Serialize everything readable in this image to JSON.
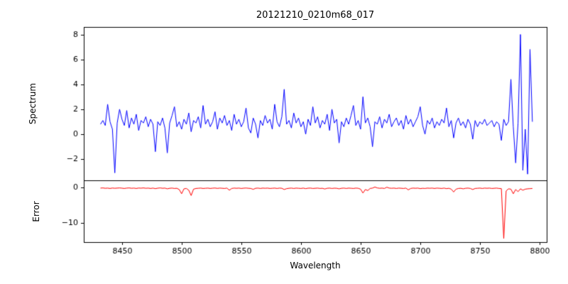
{
  "chart_data": {
    "type": "line",
    "title": "20121210_0210m68_017",
    "xlabel": "Wavelength",
    "grid": false,
    "legend": "none",
    "xlim": [
      8418,
      8806
    ],
    "x_ticks": [
      8450,
      8500,
      8550,
      8600,
      8650,
      8700,
      8750,
      8800
    ],
    "panels": [
      {
        "name": "spectrum",
        "ylabel": "Spectrum",
        "ylim": [
          -3.7,
          8.6
        ],
        "y_ticks": [
          -2,
          0,
          2,
          4,
          6,
          8
        ],
        "color": "#0000ff"
      },
      {
        "name": "error",
        "ylabel": "Error",
        "ylim": [
          -15.5,
          2.0
        ],
        "y_ticks": [
          -10,
          0
        ],
        "color": "#ff0000"
      }
    ],
    "x": [
      8432,
      8434,
      8436,
      8438,
      8440,
      8442,
      8444,
      8446,
      8448,
      8450,
      8452,
      8454,
      8456,
      8458,
      8460,
      8462,
      8464,
      8466,
      8468,
      8470,
      8472,
      8474,
      8476,
      8478,
      8480,
      8482,
      8484,
      8486,
      8488,
      8490,
      8492,
      8494,
      8496,
      8498,
      8500,
      8502,
      8504,
      8506,
      8508,
      8510,
      8512,
      8514,
      8516,
      8518,
      8520,
      8522,
      8524,
      8526,
      8528,
      8530,
      8532,
      8534,
      8536,
      8538,
      8540,
      8542,
      8544,
      8546,
      8548,
      8550,
      8552,
      8554,
      8556,
      8558,
      8560,
      8562,
      8564,
      8566,
      8568,
      8570,
      8572,
      8574,
      8576,
      8578,
      8580,
      8582,
      8584,
      8586,
      8588,
      8590,
      8592,
      8594,
      8596,
      8598,
      8600,
      8602,
      8604,
      8606,
      8608,
      8610,
      8612,
      8614,
      8616,
      8618,
      8620,
      8622,
      8624,
      8626,
      8628,
      8630,
      8632,
      8634,
      8636,
      8638,
      8640,
      8642,
      8644,
      8646,
      8648,
      8650,
      8652,
      8654,
      8656,
      8658,
      8660,
      8662,
      8664,
      8666,
      8668,
      8670,
      8672,
      8674,
      8676,
      8678,
      8680,
      8682,
      8684,
      8686,
      8688,
      8690,
      8692,
      8694,
      8696,
      8698,
      8700,
      8702,
      8704,
      8706,
      8708,
      8710,
      8712,
      8714,
      8716,
      8718,
      8720,
      8722,
      8724,
      8726,
      8728,
      8730,
      8732,
      8734,
      8736,
      8738,
      8740,
      8742,
      8744,
      8746,
      8748,
      8750,
      8752,
      8754,
      8756,
      8758,
      8760,
      8762,
      8764,
      8766,
      8768,
      8770,
      8772,
      8774,
      8776,
      8778,
      8780,
      8782,
      8784,
      8786,
      8788,
      8790,
      8792,
      8794
    ],
    "series": [
      {
        "name": "Spectrum",
        "color": "#0000ff",
        "values": [
          0.8,
          1.1,
          0.7,
          2.4,
          1.0,
          0.4,
          -3.1,
          0.9,
          2.0,
          1.2,
          0.7,
          1.9,
          0.5,
          1.3,
          0.8,
          1.6,
          0.3,
          1.1,
          0.9,
          1.4,
          0.6,
          1.2,
          0.8,
          -1.4,
          1.0,
          0.7,
          1.3,
          0.5,
          -1.5,
          0.9,
          1.5,
          2.2,
          0.6,
          1.0,
          0.4,
          1.2,
          0.8,
          1.7,
          0.2,
          1.1,
          0.9,
          1.4,
          0.5,
          2.3,
          0.8,
          1.2,
          0.6,
          1.0,
          1.8,
          0.4,
          1.3,
          0.9,
          1.5,
          0.7,
          1.1,
          0.3,
          1.6,
          0.8,
          1.2,
          0.6,
          1.0,
          2.1,
          0.5,
          0.1,
          1.3,
          0.8,
          -0.3,
          1.1,
          0.7,
          1.5,
          0.9,
          1.2,
          0.4,
          2.4,
          1.0,
          0.6,
          1.4,
          3.6,
          0.8,
          1.1,
          0.5,
          1.7,
          0.9,
          1.3,
          0.6,
          1.0,
          0.0,
          1.2,
          0.7,
          2.2,
          0.9,
          1.4,
          0.5,
          1.1,
          0.8,
          1.6,
          0.3,
          2.0,
          0.9,
          1.2,
          -0.7,
          1.0,
          0.6,
          1.3,
          0.8,
          1.5,
          2.3,
          0.7,
          1.1,
          0.4,
          3.0,
          0.9,
          1.3,
          0.6,
          -1.0,
          1.0,
          0.8,
          1.4,
          0.5,
          1.2,
          0.9,
          1.6,
          0.6,
          1.0,
          1.3,
          0.7,
          1.1,
          0.4,
          1.5,
          0.8,
          1.2,
          0.6,
          1.0,
          1.4,
          2.2,
          0.7,
          0.0,
          1.1,
          0.8,
          1.3,
          0.5,
          1.0,
          0.7,
          1.2,
          0.9,
          2.1,
          0.6,
          1.1,
          -0.3,
          0.9,
          1.3,
          0.7,
          1.0,
          0.5,
          1.2,
          0.8,
          -0.4,
          1.1,
          0.6,
          1.0,
          0.8,
          1.2,
          0.7,
          0.9,
          1.1,
          0.6,
          1.0,
          0.8,
          -0.5,
          1.2,
          0.7,
          1.0,
          4.4,
          0.6,
          -2.3,
          0.9,
          8.0,
          -2.9,
          0.4,
          -3.2,
          6.8,
          1.0
        ]
      },
      {
        "name": "Error",
        "color": "#ff0000",
        "values": [
          -0.2,
          -0.15,
          -0.25,
          -0.2,
          -0.3,
          -0.18,
          -0.25,
          -0.2,
          -0.15,
          -0.22,
          -0.3,
          -0.2,
          -0.15,
          -0.25,
          -0.2,
          -0.3,
          -0.18,
          -0.22,
          -0.15,
          -0.25,
          -0.2,
          -0.3,
          -0.2,
          -0.35,
          -0.22,
          -0.15,
          -0.25,
          -0.2,
          -0.4,
          -0.25,
          -0.2,
          -0.3,
          -0.25,
          -0.6,
          -1.8,
          -0.4,
          -0.3,
          -0.8,
          -2.3,
          -0.5,
          -0.3,
          -0.25,
          -0.2,
          -0.3,
          -0.25,
          -0.2,
          -0.3,
          -0.22,
          -0.18,
          -0.28,
          -0.2,
          -0.25,
          -0.3,
          -0.2,
          -0.8,
          -0.3,
          -0.2,
          -0.25,
          -0.2,
          -0.3,
          -0.22,
          -0.18,
          -0.25,
          -0.3,
          -0.55,
          -0.25,
          -0.2,
          -0.3,
          -0.2,
          -0.25,
          -0.2,
          -0.3,
          -0.25,
          -0.2,
          -0.3,
          -0.2,
          -0.25,
          -0.6,
          -0.35,
          -0.25,
          -0.2,
          -0.3,
          -0.2,
          -0.25,
          -0.3,
          -0.2,
          -0.35,
          -0.22,
          -0.2,
          -0.3,
          -0.25,
          -0.2,
          -0.3,
          -0.25,
          -0.45,
          -0.25,
          -0.2,
          -0.3,
          -0.22,
          -0.25,
          -0.4,
          -0.25,
          -0.2,
          -0.3,
          -0.2,
          -0.25,
          -0.3,
          -0.2,
          -0.25,
          -0.5,
          -1.6,
          -0.6,
          -0.9,
          -0.3,
          -0.2,
          0.1,
          -0.15,
          -0.25,
          -0.2,
          -0.3,
          0.05,
          -0.2,
          -0.25,
          -0.2,
          -0.3,
          -0.2,
          -0.25,
          -0.3,
          -0.2,
          -0.7,
          -0.3,
          -0.2,
          -0.25,
          -0.2,
          -0.35,
          -0.25,
          -0.3,
          -0.2,
          -0.25,
          -0.2,
          -0.3,
          -0.2,
          -0.25,
          -0.3,
          -0.2,
          -0.35,
          -0.25,
          -0.5,
          -1.3,
          -0.5,
          -0.3,
          -0.25,
          -0.4,
          -0.25,
          -0.2,
          -0.3,
          -0.6,
          -0.3,
          -0.25,
          -0.2,
          -0.3,
          -0.2,
          -0.25,
          -0.2,
          -0.3,
          -0.25,
          -0.2,
          -0.3,
          -0.35,
          -14.5,
          -1.0,
          -0.4,
          -0.5,
          -1.8,
          -0.6,
          -1.2,
          -0.4,
          -0.8,
          -0.5,
          -0.4,
          -0.35,
          -0.3
        ]
      }
    ]
  }
}
